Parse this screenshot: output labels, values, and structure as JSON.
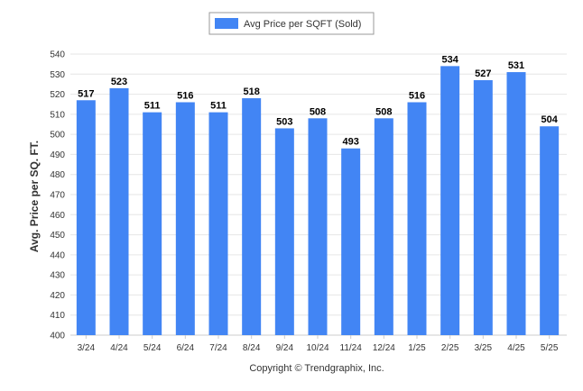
{
  "chart_data": {
    "type": "bar",
    "categories": [
      "3/24",
      "4/24",
      "5/24",
      "6/24",
      "7/24",
      "8/24",
      "9/24",
      "10/24",
      "11/24",
      "12/24",
      "1/25",
      "2/25",
      "3/25",
      "4/25",
      "5/25"
    ],
    "series": [
      {
        "name": "Avg Price per SQFT (Sold)",
        "values": [
          517,
          523,
          511,
          516,
          511,
          518,
          503,
          508,
          493,
          508,
          516,
          534,
          527,
          531,
          504
        ],
        "color": "#4285f4"
      }
    ],
    "title": "",
    "xlabel": "",
    "ylabel": "Avg. Price per SQ. FT.",
    "ylim": [
      400,
      540
    ],
    "yticks": [
      400,
      410,
      420,
      430,
      440,
      450,
      460,
      470,
      480,
      490,
      500,
      510,
      520,
      530,
      540
    ],
    "grid": true,
    "legend": "top-center",
    "data_labels": true
  },
  "footer": {
    "copyright": "Copyright © Trendgraphix, Inc."
  },
  "colors": {
    "bar": "#4285f4",
    "grid": "#e6e6e6",
    "axis": "#cccccc"
  }
}
